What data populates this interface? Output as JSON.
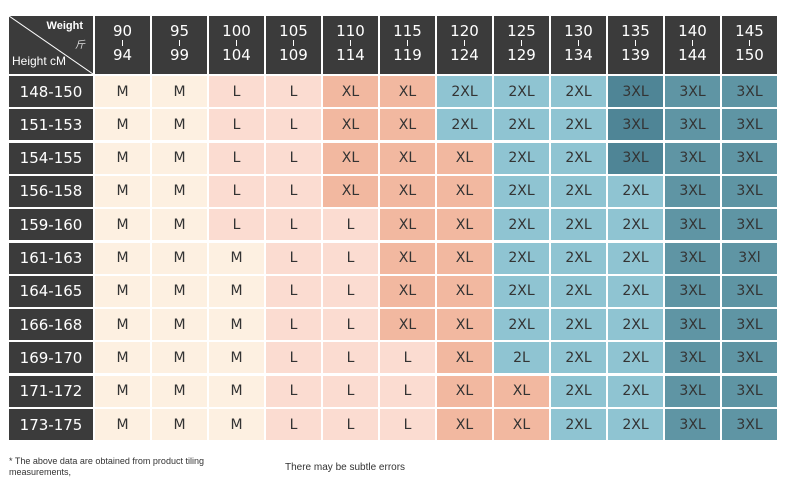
{
  "corner": {
    "weight_label": "Weight",
    "unit_label": "斤",
    "height_label": "Height cM"
  },
  "weights": [
    {
      "top": "90",
      "bottom": "94"
    },
    {
      "top": "95",
      "bottom": "99"
    },
    {
      "top": "100",
      "bottom": "104"
    },
    {
      "top": "105",
      "bottom": "109"
    },
    {
      "top": "110",
      "bottom": "114"
    },
    {
      "top": "115",
      "bottom": "119"
    },
    {
      "top": "120",
      "bottom": "124"
    },
    {
      "top": "125",
      "bottom": "129"
    },
    {
      "top": "130",
      "bottom": "134"
    },
    {
      "top": "135",
      "bottom": "139"
    },
    {
      "top": "140",
      "bottom": "144"
    },
    {
      "top": "145",
      "bottom": "150"
    }
  ],
  "heights": [
    "148-150",
    "151-153",
    "154-155",
    "156-158",
    "159-160",
    "161-163",
    "164-165",
    "166-168",
    "169-170",
    "171-172",
    "173-175"
  ],
  "table": [
    [
      "M",
      "M",
      "L",
      "L",
      "XL",
      "XL",
      "2XL",
      "2XL",
      "2XL",
      "3XL",
      "3XL",
      "3XL"
    ],
    [
      "M",
      "M",
      "L",
      "L",
      "XL",
      "XL",
      "2XL",
      "2XL",
      "2XL",
      "3XL",
      "3XL",
      "3XL"
    ],
    [
      "M",
      "M",
      "L",
      "L",
      "XL",
      "XL",
      "XL",
      "2XL",
      "2XL",
      "3XL",
      "3XL",
      "3XL"
    ],
    [
      "M",
      "M",
      "L",
      "L",
      "XL",
      "XL",
      "XL",
      "2XL",
      "2XL",
      "2XL",
      "3XL",
      "3XL"
    ],
    [
      "M",
      "M",
      "L",
      "L",
      "L",
      "XL",
      "XL",
      "2XL",
      "2XL",
      "2XL",
      "3XL",
      "3XL"
    ],
    [
      "M",
      "M",
      "M",
      "L",
      "L",
      "XL",
      "XL",
      "2XL",
      "2XL",
      "2XL",
      "3XL",
      "3Xl"
    ],
    [
      "M",
      "M",
      "M",
      "L",
      "L",
      "XL",
      "XL",
      "2XL",
      "2XL",
      "2XL",
      "3XL",
      "3XL"
    ],
    [
      "M",
      "M",
      "M",
      "L",
      "L",
      "XL",
      "XL",
      "2XL",
      "2XL",
      "2XL",
      "3XL",
      "3XL"
    ],
    [
      "M",
      "M",
      "M",
      "L",
      "L",
      "L",
      "XL",
      "2L",
      "2XL",
      "2XL",
      "3XL",
      "3XL"
    ],
    [
      "M",
      "M",
      "M",
      "L",
      "L",
      "L",
      "XL",
      "XL",
      "2XL",
      "2XL",
      "3XL",
      "3XL"
    ],
    [
      "M",
      "M",
      "M",
      "L",
      "L",
      "L",
      "XL",
      "XL",
      "2XL",
      "2XL",
      "3XL",
      "3XL"
    ]
  ],
  "colors": {
    "header_bg": "#3b3b3b",
    "M": "#fdf0e1",
    "L": "#fbdcd1",
    "XL": "#f2b8a0",
    "2XL": "#8fc4d2",
    "2L": "#8fc4d2",
    "3XL": "#5f95a4",
    "3Xl": "#5f95a4",
    "dark_3XL": "#4f8596"
  },
  "notes": {
    "left": "* The above data are obtained from product tiling measurements,",
    "center": "There may be subtle errors"
  }
}
